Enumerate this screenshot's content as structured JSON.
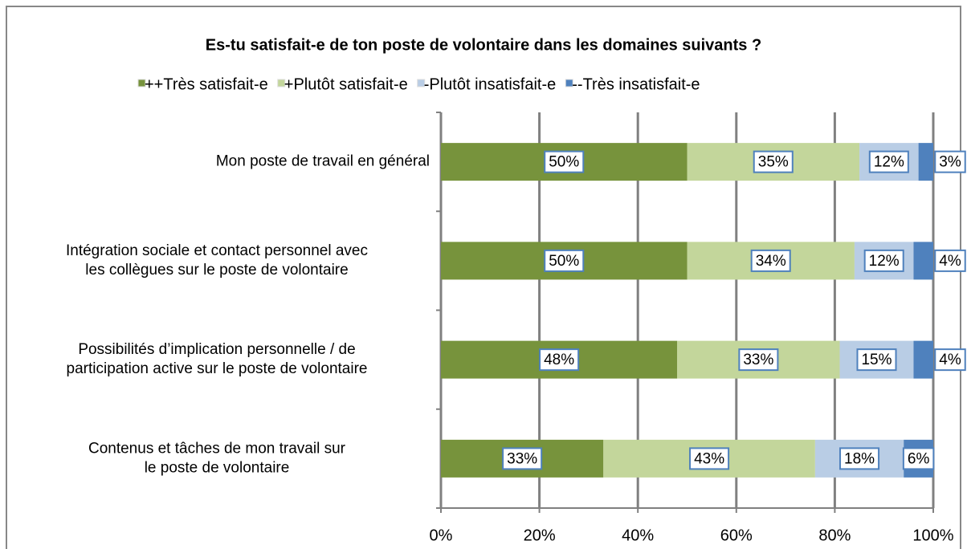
{
  "chart_data": {
    "type": "stacked-barh",
    "title": "Es-tu satisfait-e de ton poste de volontaire dans les domaines suivants ?",
    "categories": [
      "Mon  poste de travail en général",
      "Intégration sociale et contact personnel avec\nles collègues  sur le poste de volontaire",
      "Possibilités d’implication personnelle / de\nparticipation active sur le poste de volontaire",
      "Contenus et tâches de mon travail sur\nle poste de volontaire"
    ],
    "series": [
      {
        "name": "++Très satisfait-e",
        "color": "#77933c",
        "values": [
          50,
          50,
          48,
          33
        ],
        "value_labels": [
          "50%",
          "50%",
          "48%",
          "33%"
        ]
      },
      {
        "name": "+Plutôt satisfait-e",
        "color": "#c3d69b",
        "values": [
          35,
          34,
          33,
          43
        ],
        "value_labels": [
          "35%",
          "34%",
          "33%",
          "43%"
        ]
      },
      {
        "name": "-Plutôt insatisfait-e",
        "color": "#b9cde5",
        "values": [
          12,
          12,
          15,
          18
        ],
        "value_labels": [
          "12%",
          "12%",
          "15%",
          "18%"
        ]
      },
      {
        "name": "--Très insatisfait-e",
        "color": "#4f81bd",
        "values": [
          3,
          4,
          4,
          6
        ],
        "value_labels": [
          "3%",
          "4%",
          "4%",
          "6%"
        ]
      }
    ],
    "xlim": [
      0,
      100
    ],
    "xticks": [
      {
        "value": 0,
        "label": "0%"
      },
      {
        "value": 20,
        "label": "20%"
      },
      {
        "value": 40,
        "label": "40%"
      },
      {
        "value": 60,
        "label": "60%"
      },
      {
        "value": 80,
        "label": "80%"
      },
      {
        "value": 100,
        "label": "100%"
      }
    ],
    "grid": true,
    "legend": "top"
  }
}
